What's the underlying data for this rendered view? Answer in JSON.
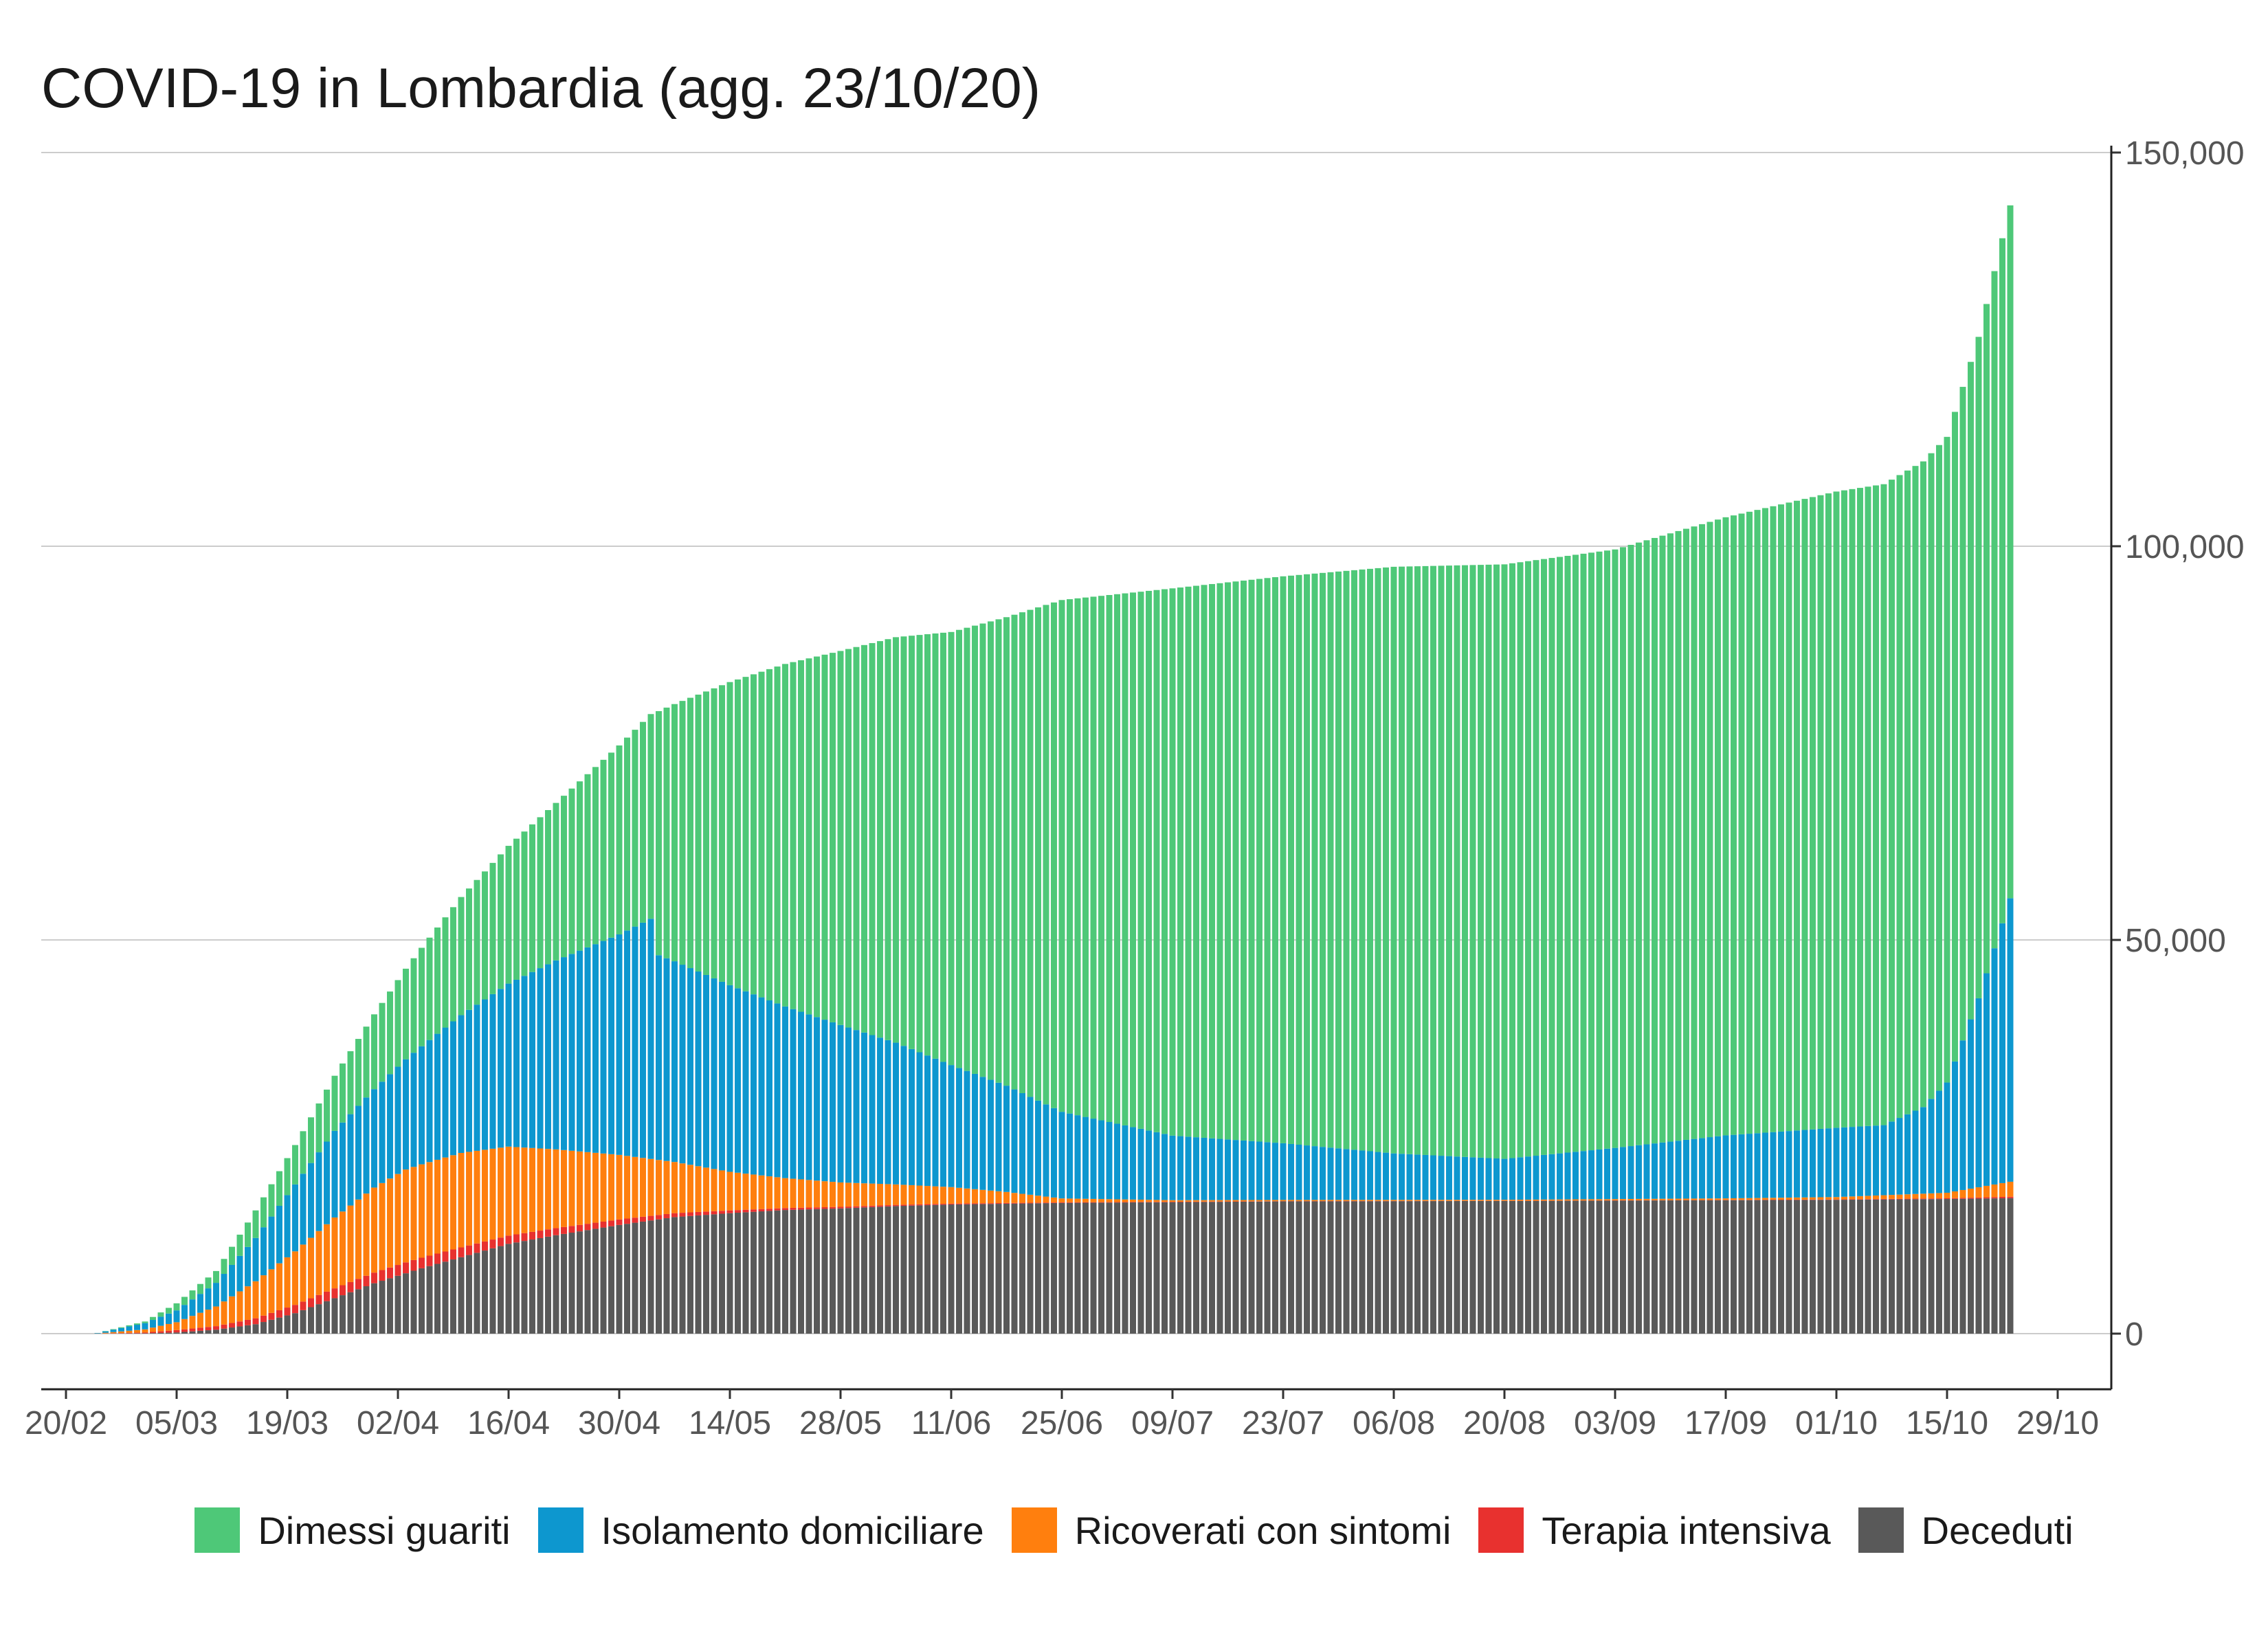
{
  "chart_data": {
    "type": "bar",
    "stacked": true,
    "title": "COVID-19 in Lombardia (agg. 23/10/20)",
    "xlabel": "",
    "ylabel": "",
    "ylim": [
      0,
      150000
    ],
    "y_axis_position": "right",
    "grid": true,
    "legend_position": "bottom",
    "y_ticks": [
      0,
      50000,
      100000,
      150000
    ],
    "y_tick_labels": [
      "0",
      "50,000",
      "100,000",
      "150,000"
    ],
    "x_tick_labels": [
      "20/02",
      "05/03",
      "19/03",
      "02/04",
      "16/04",
      "30/04",
      "14/05",
      "28/05",
      "11/06",
      "25/06",
      "09/07",
      "23/07",
      "06/08",
      "20/08",
      "03/09",
      "17/09",
      "01/10",
      "15/10",
      "29/10"
    ],
    "x_tick_dates": [
      "2020-02-20",
      "2020-03-05",
      "2020-03-19",
      "2020-04-02",
      "2020-04-16",
      "2020-04-30",
      "2020-05-14",
      "2020-05-28",
      "2020-06-11",
      "2020-06-25",
      "2020-07-09",
      "2020-07-23",
      "2020-08-06",
      "2020-08-20",
      "2020-09-03",
      "2020-09-17",
      "2020-10-01",
      "2020-10-15",
      "2020-10-29"
    ],
    "date_range": [
      "2020-02-24",
      "2020-10-23"
    ],
    "series": [
      {
        "name": "Deceduti",
        "color": "#595959",
        "points": [
          [
            "2020-02-24",
            6
          ],
          [
            "2020-03-01",
            40
          ],
          [
            "2020-03-05",
            150
          ],
          [
            "2020-03-10",
            500
          ],
          [
            "2020-03-15",
            1200
          ],
          [
            "2020-03-20",
            2600
          ],
          [
            "2020-03-25",
            4500
          ],
          [
            "2020-03-30",
            6400
          ],
          [
            "2020-04-05",
            8300
          ],
          [
            "2020-04-10",
            9700
          ],
          [
            "2020-04-16",
            11400
          ],
          [
            "2020-04-22",
            12500
          ],
          [
            "2020-04-30",
            13800
          ],
          [
            "2020-05-07",
            14800
          ],
          [
            "2020-05-14",
            15300
          ],
          [
            "2020-05-21",
            15700
          ],
          [
            "2020-05-28",
            15900
          ],
          [
            "2020-06-04",
            16200
          ],
          [
            "2020-06-11",
            16400
          ],
          [
            "2020-06-25",
            16600
          ],
          [
            "2020-07-09",
            16700
          ],
          [
            "2020-07-23",
            16800
          ],
          [
            "2020-08-20",
            16850
          ],
          [
            "2020-09-17",
            16950
          ],
          [
            "2020-10-01",
            17000
          ],
          [
            "2020-10-15",
            17100
          ],
          [
            "2020-10-23",
            17200
          ]
        ]
      },
      {
        "name": "Terapia intensiva",
        "color": "#e8312f",
        "points": [
          [
            "2020-02-24",
            0
          ],
          [
            "2020-03-01",
            100
          ],
          [
            "2020-03-05",
            300
          ],
          [
            "2020-03-10",
            450
          ],
          [
            "2020-03-15",
            750
          ],
          [
            "2020-03-20",
            1050
          ],
          [
            "2020-03-25",
            1250
          ],
          [
            "2020-03-30",
            1350
          ],
          [
            "2020-04-03",
            1380
          ],
          [
            "2020-04-10",
            1250
          ],
          [
            "2020-04-16",
            1050
          ],
          [
            "2020-04-22",
            900
          ],
          [
            "2020-04-30",
            700
          ],
          [
            "2020-05-07",
            500
          ],
          [
            "2020-05-14",
            350
          ],
          [
            "2020-05-21",
            250
          ],
          [
            "2020-05-28",
            200
          ],
          [
            "2020-06-04",
            150
          ],
          [
            "2020-06-11",
            110
          ],
          [
            "2020-06-25",
            70
          ],
          [
            "2020-07-09",
            50
          ],
          [
            "2020-07-23",
            30
          ],
          [
            "2020-08-20",
            20
          ],
          [
            "2020-09-17",
            30
          ],
          [
            "2020-10-01",
            45
          ],
          [
            "2020-10-15",
            90
          ],
          [
            "2020-10-23",
            190
          ]
        ]
      },
      {
        "name": "Ricoverati con sintomi",
        "color": "#ff7f0e",
        "points": [
          [
            "2020-02-24",
            20
          ],
          [
            "2020-03-01",
            400
          ],
          [
            "2020-03-05",
            1000
          ],
          [
            "2020-03-10",
            2500
          ],
          [
            "2020-03-15",
            4700
          ],
          [
            "2020-03-20",
            6800
          ],
          [
            "2020-03-25",
            9000
          ],
          [
            "2020-03-30",
            10800
          ],
          [
            "2020-04-03",
            11800
          ],
          [
            "2020-04-10",
            12000
          ],
          [
            "2020-04-16",
            11300
          ],
          [
            "2020-04-22",
            10000
          ],
          [
            "2020-04-30",
            8200
          ],
          [
            "2020-05-07",
            6500
          ],
          [
            "2020-05-14",
            4900
          ],
          [
            "2020-05-21",
            3800
          ],
          [
            "2020-05-28",
            3100
          ],
          [
            "2020-06-04",
            2600
          ],
          [
            "2020-06-11",
            2100
          ],
          [
            "2020-06-18",
            1400
          ],
          [
            "2020-06-25",
            500
          ],
          [
            "2020-07-09",
            200
          ],
          [
            "2020-07-23",
            150
          ],
          [
            "2020-08-20",
            130
          ],
          [
            "2020-09-17",
            200
          ],
          [
            "2020-10-01",
            300
          ],
          [
            "2020-10-15",
            700
          ],
          [
            "2020-10-23",
            1900
          ]
        ]
      },
      {
        "name": "Isolamento domiciliare",
        "color": "#0d97cf",
        "points": [
          [
            "2020-02-24",
            60
          ],
          [
            "2020-03-01",
            800
          ],
          [
            "2020-03-05",
            1500
          ],
          [
            "2020-03-10",
            3000
          ],
          [
            "2020-03-15",
            5500
          ],
          [
            "2020-03-20",
            8500
          ],
          [
            "2020-03-25",
            11000
          ],
          [
            "2020-03-30",
            12500
          ],
          [
            "2020-04-03",
            14000
          ],
          [
            "2020-04-10",
            17500
          ],
          [
            "2020-04-16",
            20700
          ],
          [
            "2020-04-22",
            24000
          ],
          [
            "2020-04-30",
            28000
          ],
          [
            "2020-05-04",
            30500
          ],
          [
            "2020-05-05",
            26000
          ],
          [
            "2020-05-14",
            23700
          ],
          [
            "2020-05-21",
            21800
          ],
          [
            "2020-05-28",
            20000
          ],
          [
            "2020-06-04",
            18000
          ],
          [
            "2020-06-11",
            15500
          ],
          [
            "2020-06-18",
            13500
          ],
          [
            "2020-06-25",
            11000
          ],
          [
            "2020-07-09",
            8200
          ],
          [
            "2020-07-23",
            7200
          ],
          [
            "2020-08-06",
            5900
          ],
          [
            "2020-08-20",
            5200
          ],
          [
            "2020-09-03",
            6500
          ],
          [
            "2020-09-17",
            8000
          ],
          [
            "2020-10-01",
            8800
          ],
          [
            "2020-10-07",
            8900
          ],
          [
            "2020-10-12",
            11000
          ],
          [
            "2020-10-15",
            14000
          ],
          [
            "2020-10-19",
            24000
          ],
          [
            "2020-10-23",
            36000
          ]
        ]
      },
      {
        "name": "Dimessi guariti",
        "color": "#4ec878",
        "points": [
          [
            "2020-02-24",
            0
          ],
          [
            "2020-03-01",
            200
          ],
          [
            "2020-03-05",
            900
          ],
          [
            "2020-03-10",
            1500
          ],
          [
            "2020-03-15",
            3500
          ],
          [
            "2020-03-20",
            5000
          ],
          [
            "2020-03-25",
            7000
          ],
          [
            "2020-03-30",
            9500
          ],
          [
            "2020-04-05",
            12500
          ],
          [
            "2020-04-10",
            15000
          ],
          [
            "2020-04-16",
            17500
          ],
          [
            "2020-04-22",
            20000
          ],
          [
            "2020-04-30",
            24000
          ],
          [
            "2020-05-04",
            26000
          ],
          [
            "2020-05-05",
            31000
          ],
          [
            "2020-05-14",
            38500
          ],
          [
            "2020-05-21",
            43500
          ],
          [
            "2020-05-28",
            47500
          ],
          [
            "2020-06-04",
            51500
          ],
          [
            "2020-06-11",
            55000
          ],
          [
            "2020-06-18",
            59500
          ],
          [
            "2020-06-25",
            65000
          ],
          [
            "2020-07-09",
            69500
          ],
          [
            "2020-07-23",
            72000
          ],
          [
            "2020-08-06",
            74500
          ],
          [
            "2020-08-20",
            75500
          ],
          [
            "2020-09-03",
            76000
          ],
          [
            "2020-09-17",
            78500
          ],
          [
            "2020-10-01",
            80800
          ],
          [
            "2020-10-07",
            81400
          ],
          [
            "2020-10-12",
            82000
          ],
          [
            "2020-10-15",
            82000
          ],
          [
            "2020-10-19",
            84000
          ],
          [
            "2020-10-23",
            88000
          ]
        ]
      }
    ]
  },
  "legend": {
    "items": [
      {
        "label": "Dimessi guariti",
        "color": "#4ec878"
      },
      {
        "label": "Isolamento domiciliare",
        "color": "#0d97cf"
      },
      {
        "label": "Ricoverati con sintomi",
        "color": "#ff7f0e"
      },
      {
        "label": "Terapia intensiva",
        "color": "#e8312f"
      },
      {
        "label": "Deceduti",
        "color": "#595959"
      }
    ]
  }
}
